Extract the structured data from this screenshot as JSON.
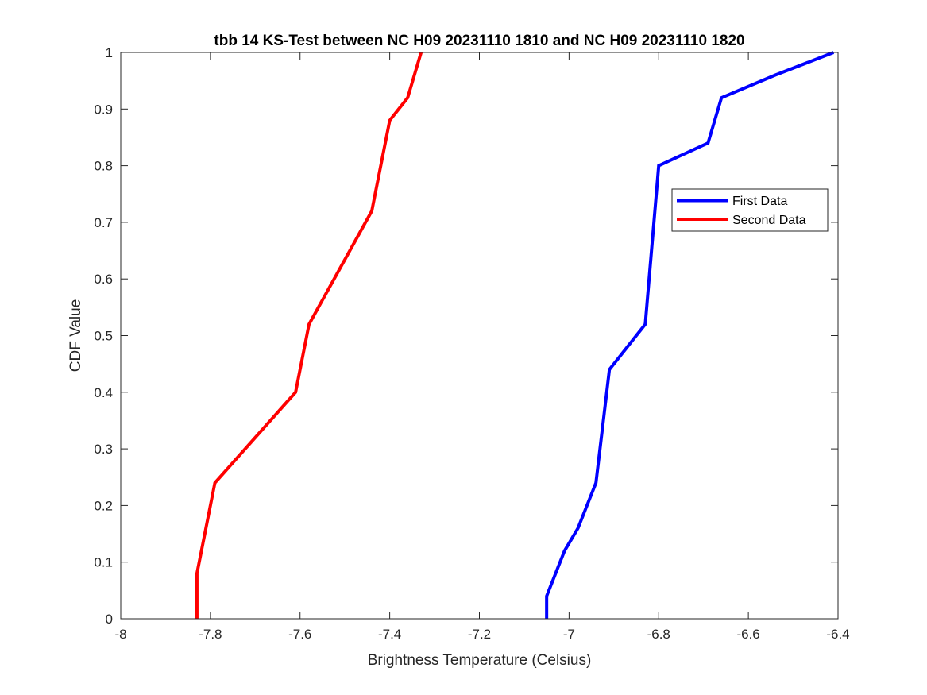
{
  "chart_data": {
    "type": "line",
    "title": "tbb 14 KS-Test between NC H09 20231110 1810 and NC H09 20231110 1820",
    "xlabel": "Brightness Temperature (Celsius)",
    "ylabel": "CDF Value",
    "xlim": [
      -8,
      -6.4
    ],
    "ylim": [
      0,
      1
    ],
    "xticks": [
      -8,
      -7.8,
      -7.6,
      -7.4,
      -7.2,
      -7,
      -6.8,
      -6.6,
      -6.4
    ],
    "xtick_labels": [
      "-8",
      "-7.8",
      "-7.6",
      "-7.4",
      "-7.2",
      "-7",
      "-6.8",
      "-6.6",
      "-6.4"
    ],
    "yticks": [
      0,
      0.1,
      0.2,
      0.3,
      0.4,
      0.5,
      0.6,
      0.7,
      0.8,
      0.9,
      1
    ],
    "ytick_labels": [
      "0",
      "0.1",
      "0.2",
      "0.3",
      "0.4",
      "0.5",
      "0.6",
      "0.7",
      "0.8",
      "0.9",
      "1"
    ],
    "grid": false,
    "legend_position": "upper-right",
    "series": [
      {
        "name": "First Data",
        "color": "#0000ff",
        "x": [
          -7.05,
          -7.05,
          -7.01,
          -6.98,
          -6.94,
          -6.91,
          -6.83,
          -6.8,
          -6.69,
          -6.66,
          -6.54,
          -6.41
        ],
        "y": [
          0,
          0.04,
          0.12,
          0.16,
          0.24,
          0.44,
          0.52,
          0.8,
          0.84,
          0.92,
          0.96,
          1.0
        ]
      },
      {
        "name": "Second Data",
        "color": "#ff0000",
        "x": [
          -7.83,
          -7.83,
          -7.79,
          -7.61,
          -7.58,
          -7.44,
          -7.4,
          -7.36,
          -7.33
        ],
        "y": [
          0,
          0.08,
          0.24,
          0.4,
          0.52,
          0.72,
          0.88,
          0.92,
          1.0
        ]
      }
    ]
  }
}
